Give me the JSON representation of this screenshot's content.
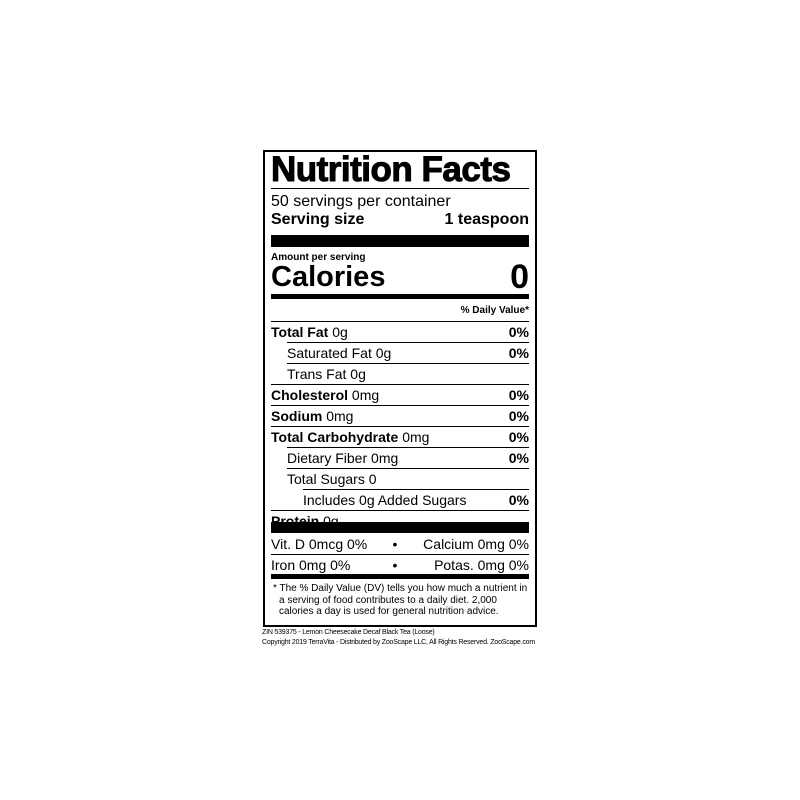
{
  "title": "Nutrition Facts",
  "servings": "50 servings per container",
  "serving_size_label": "Serving size",
  "serving_size_value": "1 teaspoon",
  "amount_per_serving": "Amount per serving",
  "calories_label": "Calories",
  "calories_value": "0",
  "dv_header": "% Daily Value*",
  "nutrients": [
    {
      "name": "Total Fat",
      "amount": "0g",
      "dv": "0%"
    },
    {
      "name": "Saturated Fat",
      "amount": "0g",
      "dv": "0%"
    },
    {
      "name": "Trans Fat",
      "amount": "0g",
      "dv": ""
    },
    {
      "name": "Cholesterol",
      "amount": "0mg",
      "dv": "0%"
    },
    {
      "name": "Sodium",
      "amount": "0mg",
      "dv": "0%"
    },
    {
      "name": "Total Carbohydrate",
      "amount": "0mg",
      "dv": "0%"
    },
    {
      "name": "Dietary Fiber",
      "amount": "0mg",
      "dv": "0%"
    },
    {
      "name": "Total Sugars",
      "amount": "0",
      "dv": ""
    },
    {
      "name": "Includes 0g Added Sugars",
      "amount": "",
      "dv": "0%"
    },
    {
      "name": "Protein",
      "amount": "0g",
      "dv": ""
    }
  ],
  "vitamins": [
    {
      "left": "Vit. D 0mcg 0%",
      "right": "Calcium 0mg 0%"
    },
    {
      "left": "Iron 0mg 0%",
      "right": "Potas. 0mg 0%"
    }
  ],
  "bullet": "•",
  "footnote": "* The % Daily Value (DV) tells you how much a nutrient in a serving of food contributes to a daily diet. 2,000 calories a day is used for general nutrition advice.",
  "product_line": "ZIN 539375 - Lemon Cheesecake Decaf Black Tea (Loose)",
  "copyright_line": "Copyright 2019 TerraVita - Distributed by ZooScape LLC, All Rights Reserved. ZooScape.com"
}
